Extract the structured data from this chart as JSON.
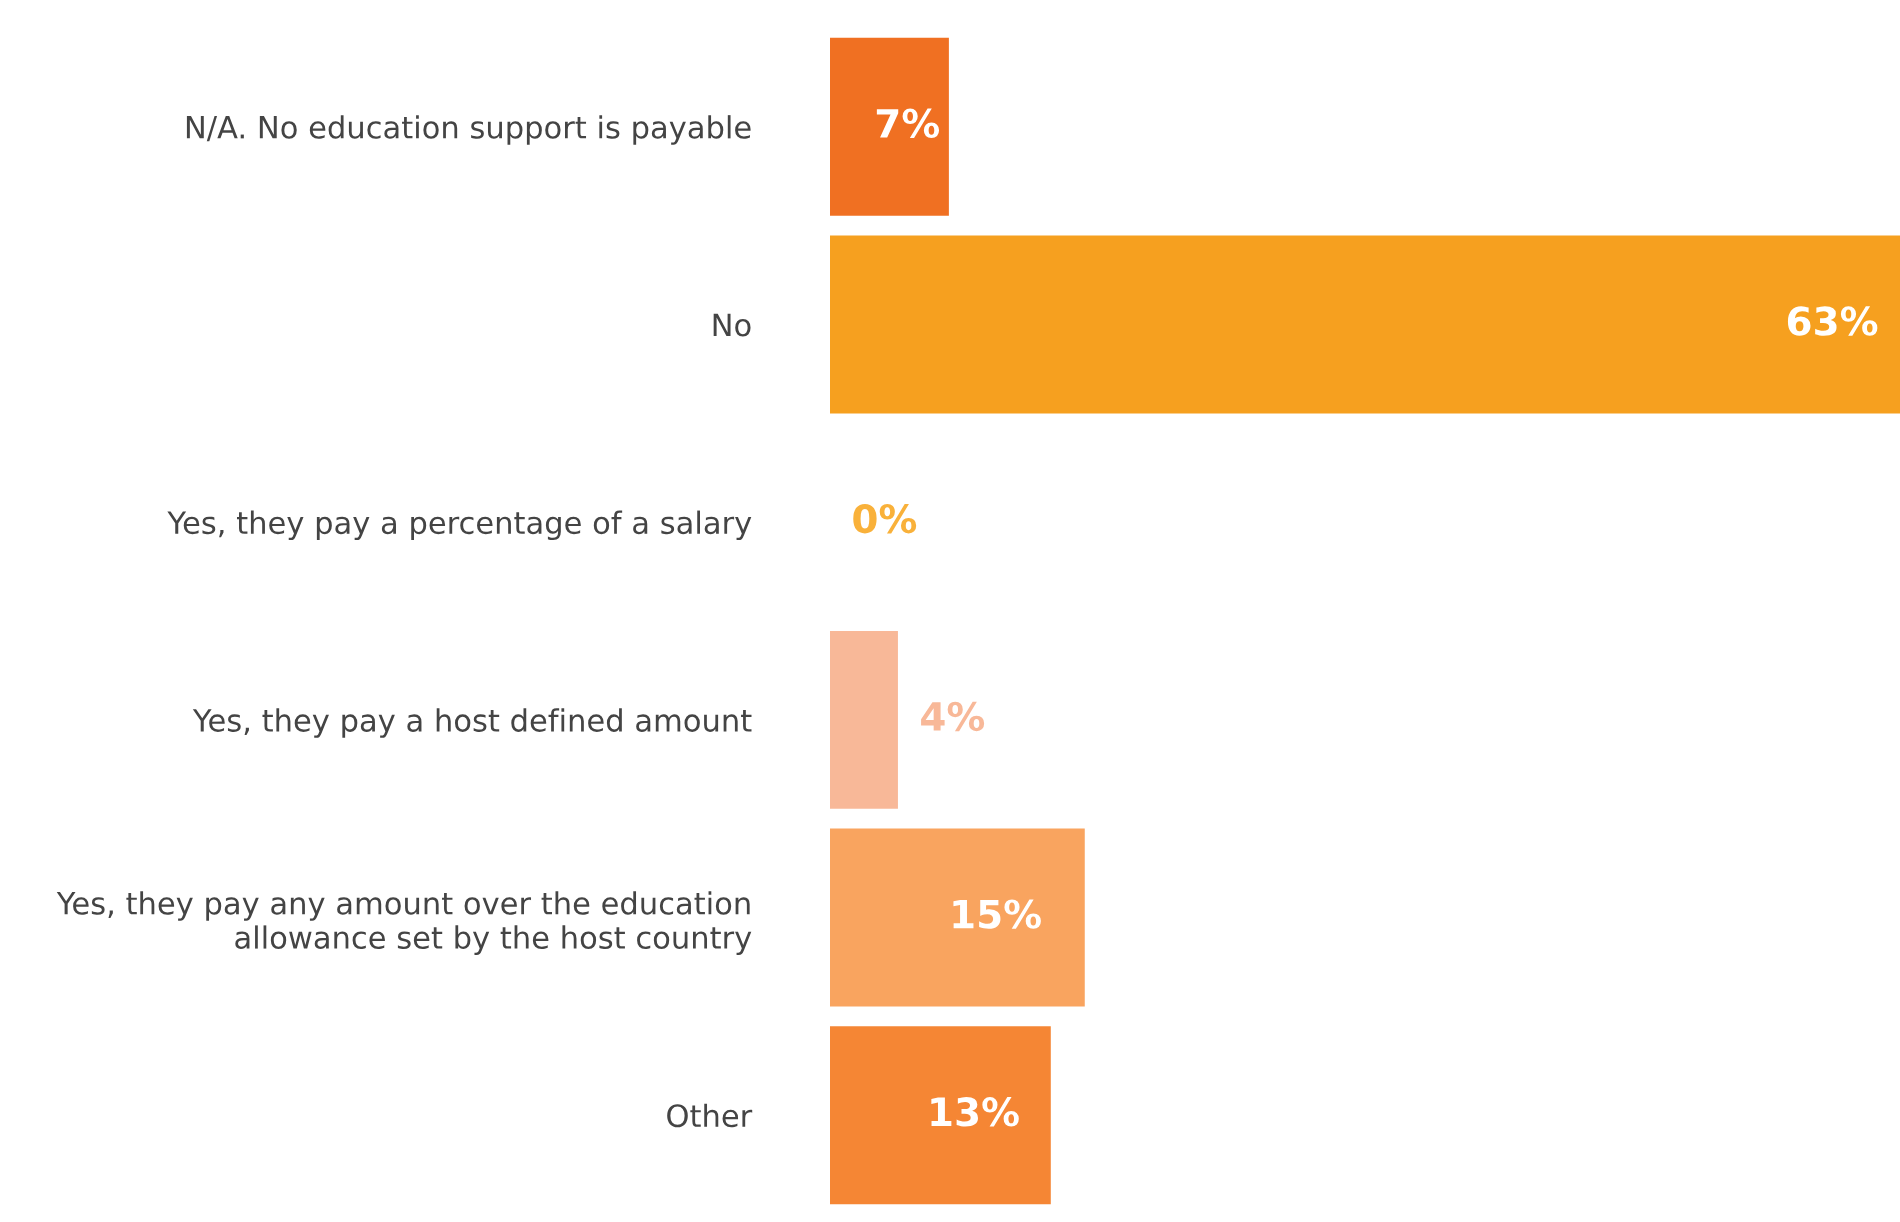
{
  "chart_data": {
    "type": "bar",
    "orientation": "horizontal",
    "categories": [
      "N/A. No education support is payable",
      "No",
      "Yes, they pay a percentage of a salary",
      "Yes, they pay a host defined amount",
      "Yes, they pay any amount over the education\nallowance set by the host country",
      "Other"
    ],
    "values": [
      7,
      63,
      0,
      4,
      15,
      13
    ],
    "colors": [
      "#f07022",
      "#f6a01f",
      "#f9b13a",
      "#f8b898",
      "#f9a45f",
      "#f58634"
    ],
    "value_labels": [
      "7%",
      "63%",
      "0%",
      "4%",
      "15%",
      "13%"
    ],
    "xlim": [
      0,
      63
    ],
    "tick_labels": "y",
    "grid": false,
    "legend": false
  }
}
